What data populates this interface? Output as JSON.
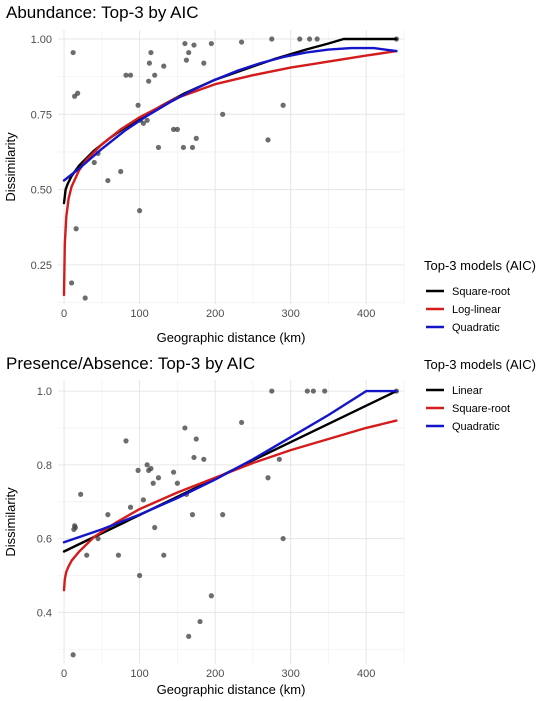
{
  "chart_data": [
    {
      "type": "scatter",
      "title": "Abundance: Top-3 by AIC",
      "xlabel": "Geographic distance (km)",
      "ylabel": "Dissimilarity",
      "xlim": [
        -8,
        450
      ],
      "ylim": [
        0.12,
        1.03
      ],
      "xticks": [
        0,
        100,
        200,
        300,
        400
      ],
      "yticks": [
        0.25,
        0.5,
        0.75,
        1.0
      ],
      "ytick_labels": [
        "0.25",
        "0.50",
        "0.75",
        "1.00"
      ],
      "grid": true,
      "legend": {
        "title": "Top-3 models (AIC)",
        "position": "right",
        "items": [
          {
            "label": "Square-root",
            "color": "#000000"
          },
          {
            "label": "Log-linear",
            "color": "#d41c1c"
          },
          {
            "label": "Quadratic",
            "color": "#1414c8"
          }
        ]
      },
      "points": {
        "x": [
          10,
          12,
          14,
          18,
          16,
          28,
          40,
          45,
          58,
          75,
          82,
          88,
          98,
          100,
          101,
          105,
          110,
          112,
          113,
          115,
          120,
          125,
          132,
          145,
          150,
          158,
          160,
          162,
          165,
          170,
          172,
          175,
          185,
          195,
          210,
          235,
          270,
          275,
          290,
          312,
          325,
          335,
          440
        ],
        "y": [
          0.19,
          0.955,
          0.81,
          0.82,
          0.37,
          0.14,
          0.59,
          0.62,
          0.53,
          0.56,
          0.88,
          0.88,
          0.78,
          0.43,
          0.73,
          0.72,
          0.73,
          0.86,
          0.92,
          0.955,
          0.88,
          0.64,
          0.91,
          0.7,
          0.7,
          0.64,
          0.985,
          0.93,
          0.955,
          0.64,
          0.98,
          0.67,
          0.92,
          0.985,
          0.75,
          0.99,
          0.665,
          1.0,
          0.78,
          1.0,
          1.0,
          1.0,
          1.0
        ]
      },
      "series": [
        {
          "name": "Square-root",
          "color": "#000000",
          "x": [
            0,
            2,
            5,
            10,
            20,
            40,
            60,
            80,
            100,
            130,
            160,
            200,
            240,
            280,
            320,
            350,
            370,
            400,
            440
          ],
          "y": [
            0.455,
            0.5,
            0.52,
            0.545,
            0.58,
            0.63,
            0.67,
            0.705,
            0.735,
            0.78,
            0.82,
            0.865,
            0.9,
            0.935,
            0.965,
            0.985,
            1.0,
            1.0,
            1.0
          ]
        },
        {
          "name": "Log-linear",
          "color": "#d41c1c",
          "x": [
            0,
            1,
            3,
            6,
            10,
            20,
            30,
            50,
            75,
            100,
            150,
            200,
            250,
            300,
            350,
            400,
            440
          ],
          "y": [
            0.15,
            0.32,
            0.41,
            0.47,
            0.51,
            0.565,
            0.6,
            0.65,
            0.7,
            0.74,
            0.805,
            0.85,
            0.88,
            0.905,
            0.925,
            0.945,
            0.96
          ]
        },
        {
          "name": "Quadratic",
          "color": "#1414c8",
          "x": [
            0,
            20,
            50,
            80,
            110,
            140,
            170,
            200,
            230,
            260,
            290,
            320,
            350,
            380,
            410,
            440
          ],
          "y": [
            0.53,
            0.57,
            0.635,
            0.695,
            0.745,
            0.79,
            0.83,
            0.865,
            0.895,
            0.92,
            0.94,
            0.955,
            0.965,
            0.97,
            0.97,
            0.96
          ]
        }
      ]
    },
    {
      "type": "scatter",
      "title": "Presence/Absence: Top-3 by AIC",
      "xlabel": "Geographic distance (km)",
      "ylabel": "Dissimilarity",
      "xlim": [
        -8,
        450
      ],
      "ylim": [
        0.26,
        1.03
      ],
      "xticks": [
        0,
        100,
        200,
        300,
        400
      ],
      "yticks": [
        0.4,
        0.6,
        0.8,
        1.0
      ],
      "ytick_labels": [
        "0.4",
        "0.6",
        "0.8",
        "1.0"
      ],
      "grid": true,
      "legend": {
        "title": "Top-3 models (AIC)",
        "position": "right",
        "items": [
          {
            "label": "Linear",
            "color": "#000000"
          },
          {
            "label": "Square-root",
            "color": "#d41c1c"
          },
          {
            "label": "Quadratic",
            "color": "#1414c8"
          }
        ]
      },
      "points": {
        "x": [
          12,
          13,
          14,
          15,
          22,
          30,
          45,
          58,
          72,
          82,
          88,
          98,
          100,
          105,
          110,
          112,
          115,
          118,
          120,
          125,
          132,
          145,
          150,
          160,
          162,
          165,
          170,
          172,
          175,
          180,
          185,
          195,
          210,
          235,
          270,
          275,
          285,
          290,
          322,
          330,
          345,
          440
        ],
        "y": [
          0.285,
          0.625,
          0.635,
          0.63,
          0.72,
          0.555,
          0.6,
          0.665,
          0.555,
          0.865,
          0.685,
          0.785,
          0.5,
          0.705,
          0.8,
          0.785,
          0.79,
          0.75,
          0.63,
          0.765,
          0.555,
          0.78,
          0.75,
          0.9,
          0.72,
          0.335,
          0.665,
          0.82,
          0.87,
          0.375,
          0.815,
          0.445,
          0.665,
          0.915,
          0.765,
          1.0,
          0.815,
          0.6,
          1.0,
          1.0,
          1.0,
          1.0
        ]
      },
      "series": [
        {
          "name": "Linear",
          "color": "#000000",
          "x": [
            0,
            440
          ],
          "y": [
            0.565,
            1.0
          ]
        },
        {
          "name": "Square-root",
          "color": "#d41c1c",
          "x": [
            0,
            1,
            3,
            6,
            10,
            20,
            40,
            70,
            100,
            150,
            200,
            250,
            300,
            350,
            400,
            440
          ],
          "y": [
            0.46,
            0.49,
            0.51,
            0.525,
            0.54,
            0.565,
            0.605,
            0.645,
            0.68,
            0.725,
            0.765,
            0.805,
            0.84,
            0.87,
            0.9,
            0.92
          ]
        },
        {
          "name": "Quadratic",
          "color": "#1414c8",
          "x": [
            0,
            50,
            100,
            150,
            200,
            250,
            300,
            350,
            400,
            410,
            440
          ],
          "y": [
            0.59,
            0.625,
            0.665,
            0.71,
            0.76,
            0.815,
            0.875,
            0.935,
            1.0,
            1.0,
            1.0
          ]
        }
      ]
    }
  ]
}
